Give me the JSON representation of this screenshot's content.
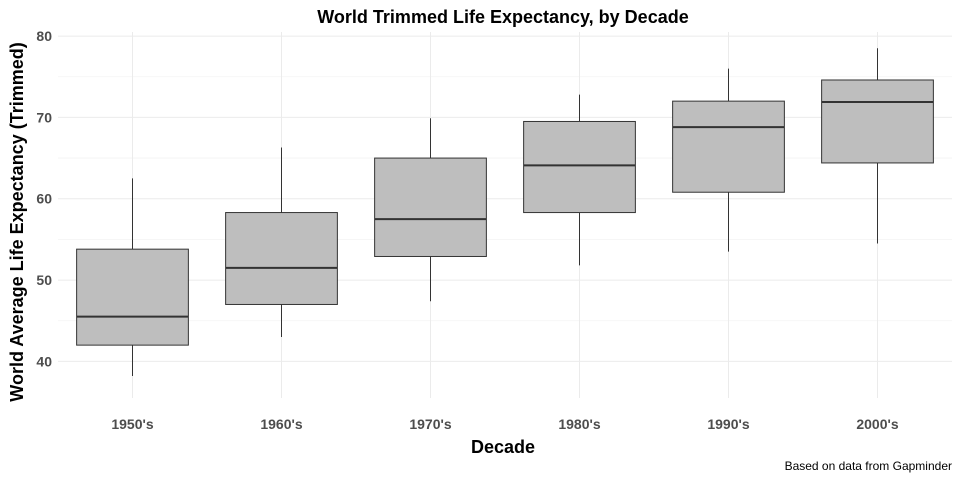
{
  "chart_data": {
    "type": "boxplot",
    "title": "World Trimmed Life Expectancy, by Decade",
    "xlabel": "Decade",
    "ylabel": "World Average Life Expectancy (Trimmed)",
    "caption": "Based on data from Gapminder",
    "ylim": [
      35.5,
      80.5
    ],
    "yticks": [
      40,
      50,
      60,
      70,
      80
    ],
    "grid": true,
    "box_color": "#bebebe",
    "line_color": "#333333",
    "categories": [
      "1950's",
      "1960's",
      "1970's",
      "1980's",
      "1990's",
      "2000's"
    ],
    "boxes": [
      {
        "label": "1950's",
        "min": 38.2,
        "q1": 42.0,
        "median": 45.5,
        "q3": 53.8,
        "max": 62.5
      },
      {
        "label": "1960's",
        "min": 43.0,
        "q1": 47.0,
        "median": 51.5,
        "q3": 58.3,
        "max": 66.3
      },
      {
        "label": "1970's",
        "min": 47.4,
        "q1": 52.9,
        "median": 57.5,
        "q3": 65.0,
        "max": 69.9
      },
      {
        "label": "1980's",
        "min": 51.8,
        "q1": 58.3,
        "median": 64.1,
        "q3": 69.5,
        "max": 72.8
      },
      {
        "label": "1990's",
        "min": 53.5,
        "q1": 60.8,
        "median": 68.8,
        "q3": 72.0,
        "max": 76.0
      },
      {
        "label": "2000's",
        "min": 54.5,
        "q1": 64.4,
        "median": 71.9,
        "q3": 74.6,
        "max": 78.5
      }
    ]
  }
}
